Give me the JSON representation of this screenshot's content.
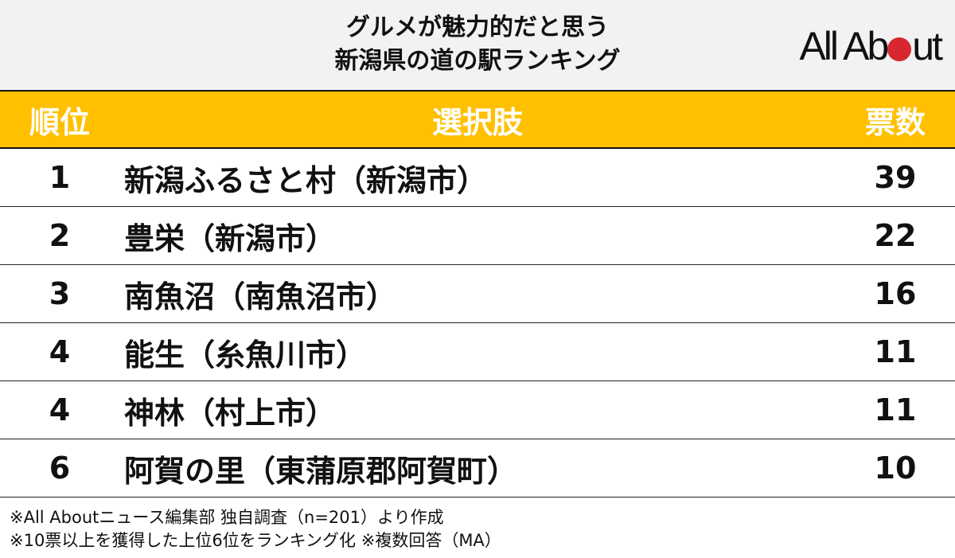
{
  "header": {
    "title_line1": "グルメが魅力的だと思う",
    "title_line2": "新潟県の道の駅ランキング",
    "logo": "All About",
    "accent": "#d7282f"
  },
  "table": {
    "header_color": "#ffc000",
    "columns": [
      "順位",
      "選択肢",
      "票数"
    ],
    "rows": [
      {
        "rank": "1",
        "name": "新潟ふるさと村（新潟市）",
        "votes": "39"
      },
      {
        "rank": "2",
        "name": "豊栄（新潟市）",
        "votes": "22"
      },
      {
        "rank": "3",
        "name": "南魚沼（南魚沼市）",
        "votes": "16"
      },
      {
        "rank": "4",
        "name": "能生（糸魚川市）",
        "votes": "11"
      },
      {
        "rank": "4",
        "name": "神林（村上市）",
        "votes": "11"
      },
      {
        "rank": "6",
        "name": "阿賀の里（東蒲原郡阿賀町）",
        "votes": "10"
      }
    ]
  },
  "footer": {
    "note1": "※All Aboutニュース編集部 独自調査（n=201）より作成",
    "note2": "※10票以上を獲得した上位6位をランキング化 ※複数回答（MA）"
  }
}
